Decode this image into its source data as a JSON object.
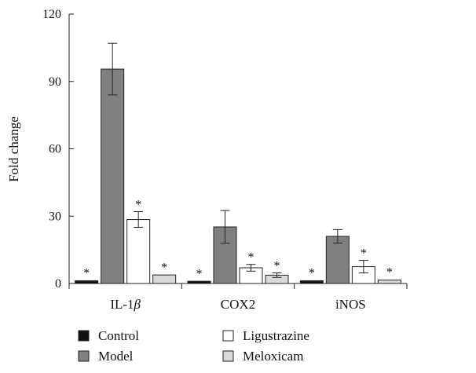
{
  "chart_data": {
    "type": "bar",
    "title": "",
    "xlabel": "",
    "ylabel": "Fold change",
    "ylim": [
      0,
      120
    ],
    "yticks": [
      0,
      30,
      60,
      90,
      120
    ],
    "categories": [
      "IL-1β",
      "COX2",
      "iNOS"
    ],
    "category_display": [
      {
        "main": "IL-1",
        "italic": "β"
      },
      {
        "main": "COX2",
        "italic": ""
      },
      {
        "main": "iNOS",
        "italic": ""
      }
    ],
    "significance_marker": "*",
    "series": [
      {
        "name": "Control",
        "color": "#111111",
        "values": [
          1.2,
          1.0,
          1.2
        ],
        "errors": [
          0.3,
          0.3,
          0.3
        ],
        "significant": [
          true,
          true,
          true
        ]
      },
      {
        "name": "Model",
        "color": "#808080",
        "values": [
          95.5,
          25.2,
          21.0
        ],
        "errors": [
          11.5,
          7.3,
          3.0
        ],
        "significant": [
          false,
          false,
          false
        ]
      },
      {
        "name": "Ligustrazine",
        "color": "#ffffff",
        "values": [
          28.5,
          7.0,
          7.5
        ],
        "errors": [
          3.5,
          1.5,
          2.8
        ],
        "significant": [
          true,
          true,
          true
        ]
      },
      {
        "name": "Meloxicam",
        "color": "#d9d9d9",
        "values": [
          3.8,
          3.7,
          1.5
        ],
        "errors": [
          0.3,
          1.0,
          0.5
        ],
        "significant": [
          true,
          true,
          true
        ]
      }
    ],
    "legend": {
      "position": "bottom",
      "columns": 2
    },
    "grid": false
  }
}
